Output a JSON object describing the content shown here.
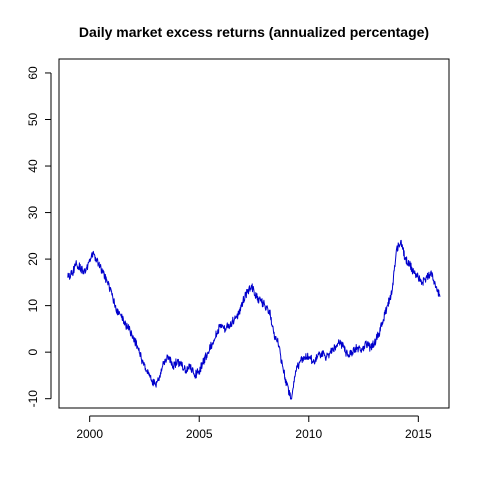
{
  "chart_data": {
    "type": "line",
    "title": "Daily market excess returns (annualized percentage)",
    "xlabel": "",
    "ylabel": "",
    "xlim": [
      1998.6,
      2016.4
    ],
    "ylim": [
      -12,
      63
    ],
    "x_ticks": [
      2000,
      2005,
      2010,
      2015
    ],
    "x_tick_labels": [
      "2000",
      "2005",
      "2010",
      "2015"
    ],
    "y_ticks": [
      -10,
      0,
      10,
      20,
      30,
      40,
      50,
      60
    ],
    "y_tick_labels": [
      "-10",
      "0",
      "10",
      "20",
      "30",
      "40",
      "50",
      "60"
    ],
    "grid": false,
    "legend": "none",
    "series": [
      {
        "color": "#0000cc",
        "x": [
          1999.0,
          1999.2,
          1999.4,
          1999.6,
          1999.8,
          2000.0,
          2000.2,
          2000.4,
          2000.6,
          2000.8,
          2001.0,
          2001.2,
          2001.4,
          2001.6,
          2001.8,
          2002.0,
          2002.2,
          2002.4,
          2002.6,
          2002.8,
          2003.0,
          2003.2,
          2003.4,
          2003.6,
          2003.8,
          2004.0,
          2004.2,
          2004.4,
          2004.6,
          2004.8,
          2005.0,
          2005.2,
          2005.4,
          2005.6,
          2005.8,
          2006.0,
          2006.2,
          2006.4,
          2006.6,
          2006.8,
          2007.0,
          2007.2,
          2007.4,
          2007.6,
          2007.8,
          2008.0,
          2008.2,
          2008.4,
          2008.6,
          2008.8,
          2009.0,
          2009.2,
          2009.4,
          2009.6,
          2009.8,
          2010.0,
          2010.2,
          2010.4,
          2010.6,
          2010.8,
          2011.0,
          2011.2,
          2011.4,
          2011.6,
          2011.8,
          2012.0,
          2012.2,
          2012.4,
          2012.6,
          2012.8,
          2013.0,
          2013.2,
          2013.4,
          2013.6,
          2013.8,
          2014.0,
          2014.2,
          2014.4,
          2014.6,
          2014.8,
          2015.0,
          2015.2,
          2015.4,
          2015.6,
          2015.8,
          2016.0
        ],
        "values": [
          16,
          17,
          19,
          18,
          17,
          20,
          21,
          19,
          17,
          15,
          13,
          9,
          8,
          6,
          5,
          3,
          1,
          -2,
          -4,
          -6,
          -7,
          -5,
          -2,
          -1,
          -3,
          -2,
          -3,
          -4,
          -3,
          -5,
          -4,
          -2,
          0,
          2,
          4,
          6,
          5,
          6,
          7,
          8,
          11,
          13,
          14,
          12,
          11,
          10,
          9,
          4,
          2,
          -3,
          -7,
          -10,
          -4,
          -2,
          -1,
          -1,
          -2,
          -1,
          0,
          -1,
          0,
          1,
          2,
          1,
          -1,
          0,
          1,
          0,
          2,
          1,
          2,
          4,
          7,
          10,
          13,
          22,
          24,
          20,
          19,
          17,
          16,
          15,
          16,
          17,
          14,
          12
        ]
      }
    ]
  }
}
